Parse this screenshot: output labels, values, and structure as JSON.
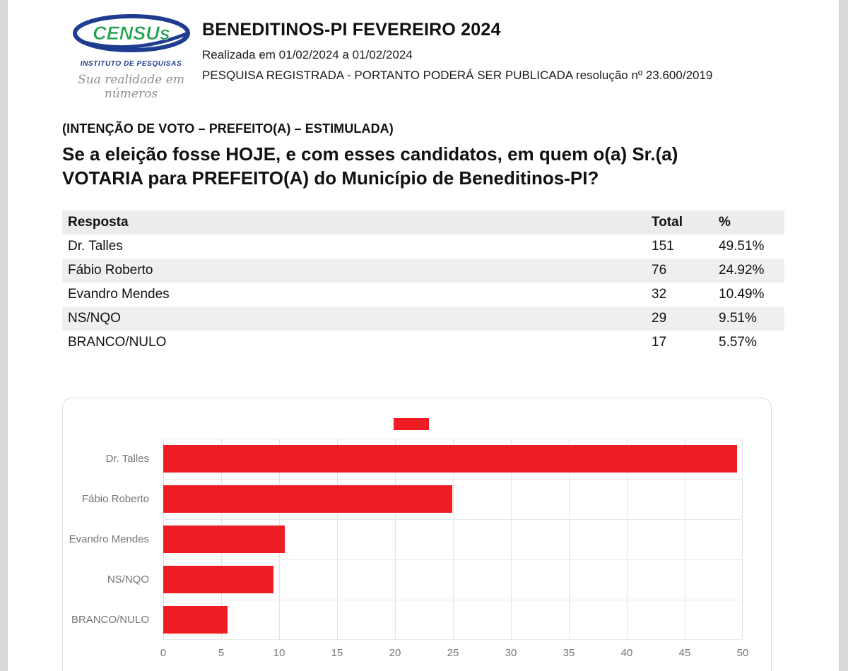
{
  "logo": {
    "brand": "CENSUs",
    "institute": "INSTITUTO DE PESQUISAS",
    "tagline": "Sua realidade em números",
    "ellipse_color": "#1e3d8f",
    "brand_color": "#1fa24c"
  },
  "header": {
    "title": "BENEDITINOS-PI FEVEREIRO 2024",
    "date_line": "Realizada em 01/02/2024 a 01/02/2024",
    "registration_line": "PESQUISA REGISTRADA - PORTANTO PODERÁ SER PUBLICADA resolução nº 23.600/2019"
  },
  "question": {
    "kicker": "(INTENÇÃO DE VOTO – PREFEITO(A) – ESTIMULADA)",
    "text": "Se a eleição fosse HOJE, e com esses candidatos, em quem o(a) Sr.(a)\nVOTARIA para PREFEITO(A) do Município de Beneditinos-PI?"
  },
  "table": {
    "headers": {
      "resposta": "Resposta",
      "total": "Total",
      "pct": "%"
    },
    "rows": [
      {
        "resposta": "Dr. Talles",
        "total": "151",
        "pct": "49.51%"
      },
      {
        "resposta": "Fábio Roberto",
        "total": "76",
        "pct": "24.92%"
      },
      {
        "resposta": "Evandro Mendes",
        "total": "32",
        "pct": "10.49%"
      },
      {
        "resposta": "NS/NQO",
        "total": "29",
        "pct": "9.51%"
      },
      {
        "resposta": "BRANCO/NULO",
        "total": "17",
        "pct": "5.57%"
      }
    ]
  },
  "chart_data": {
    "type": "bar",
    "orientation": "horizontal",
    "title": "",
    "xlabel": "",
    "ylabel": "",
    "categories": [
      "Dr. Talles",
      "Fábio Roberto",
      "Evandro Mendes",
      "NS/NQO",
      "BRANCO/NULO"
    ],
    "values": [
      49.51,
      24.92,
      10.49,
      9.51,
      5.57
    ],
    "xlim": [
      0,
      50
    ],
    "xticks": [
      0,
      5,
      10,
      15,
      20,
      25,
      30,
      35,
      40,
      45,
      50
    ],
    "grid": true,
    "bar_color": "#ee1c23",
    "legend_position": "top",
    "legend_label": ""
  }
}
